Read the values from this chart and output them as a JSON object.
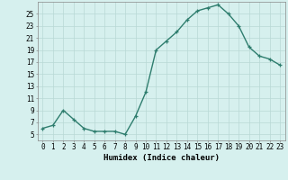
{
  "x": [
    0,
    1,
    2,
    3,
    4,
    5,
    6,
    7,
    8,
    9,
    10,
    11,
    12,
    13,
    14,
    15,
    16,
    17,
    18,
    19,
    20,
    21,
    22,
    23
  ],
  "y": [
    6,
    6.5,
    9,
    7.5,
    6,
    5.5,
    5.5,
    5.5,
    5,
    8,
    12,
    19,
    20.5,
    22,
    24,
    25.5,
    26,
    26.5,
    25,
    23,
    19.5,
    18,
    17.5,
    16.5
  ],
  "line_color": "#2e7d6e",
  "marker": "+",
  "marker_size": 3,
  "bg_color": "#d6f0ee",
  "grid_color": "#b8d8d5",
  "xlabel": "Humidex (Indice chaleur)",
  "xlim": [
    -0.5,
    23.5
  ],
  "ylim": [
    4,
    27
  ],
  "yticks": [
    5,
    7,
    9,
    11,
    13,
    15,
    17,
    19,
    21,
    23,
    25
  ],
  "xtick_labels": [
    "0",
    "1",
    "2",
    "3",
    "4",
    "5",
    "6",
    "7",
    "8",
    "9",
    "10",
    "11",
    "12",
    "13",
    "14",
    "15",
    "16",
    "17",
    "18",
    "19",
    "20",
    "21",
    "22",
    "23"
  ],
  "tick_fontsize": 5.5,
  "label_fontsize": 6.5,
  "line_width": 1.0,
  "marker_edge_width": 0.9
}
